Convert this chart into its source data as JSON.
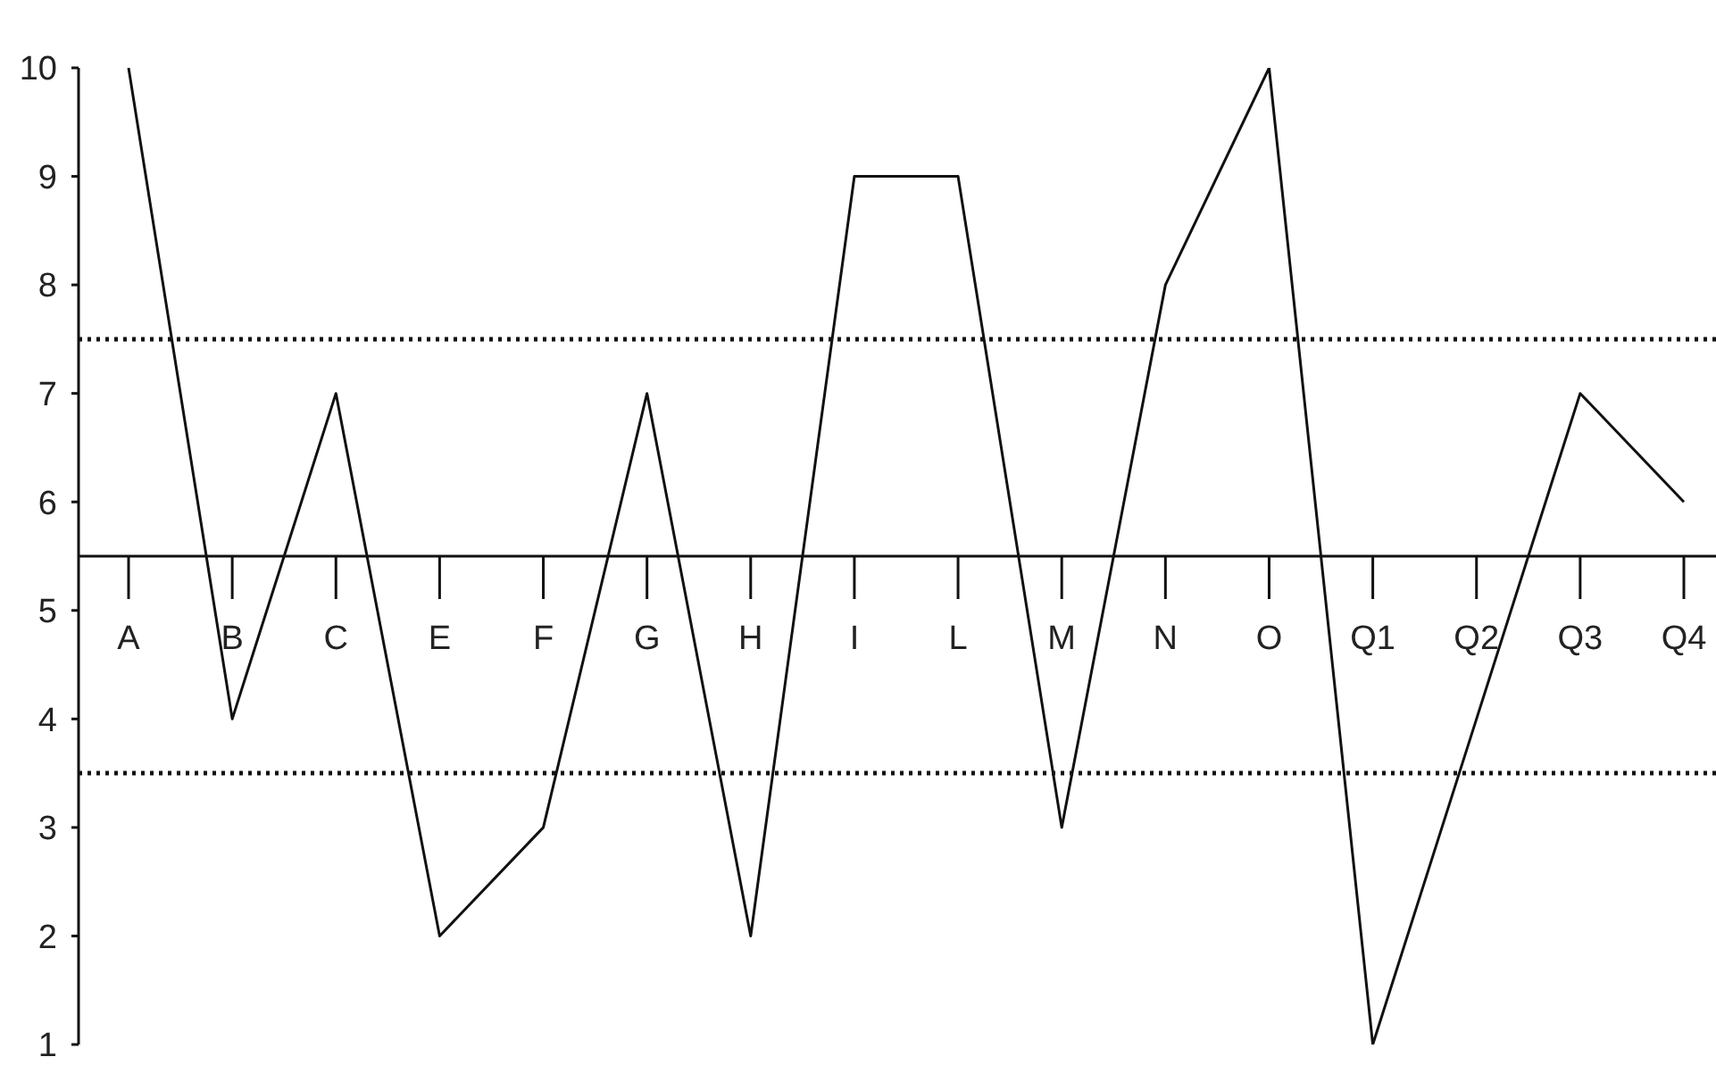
{
  "chart_data": {
    "type": "line",
    "categories": [
      "A",
      "B",
      "C",
      "E",
      "F",
      "G",
      "H",
      "I",
      "L",
      "M",
      "N",
      "O",
      "Q1",
      "Q2",
      "Q3",
      "Q4"
    ],
    "series": [
      {
        "color": "#111111",
        "values": [
          10,
          4,
          7,
          2,
          3,
          7,
          2,
          9,
          9,
          3,
          8,
          10,
          1,
          4,
          7,
          6
        ]
      }
    ],
    "ylim": [
      1,
      10
    ],
    "yticks": [
      1,
      2,
      3,
      4,
      5,
      6,
      7,
      8,
      9,
      10
    ],
    "grid": false,
    "legend": false,
    "marker": "none",
    "line_style": "solid",
    "ref_lines": [
      {
        "axis": "y",
        "value": 7.5,
        "line_style": "dotted",
        "color": "#111111"
      },
      {
        "axis": "y",
        "value": 3.5,
        "line_style": "dotted",
        "color": "#111111"
      }
    ]
  }
}
